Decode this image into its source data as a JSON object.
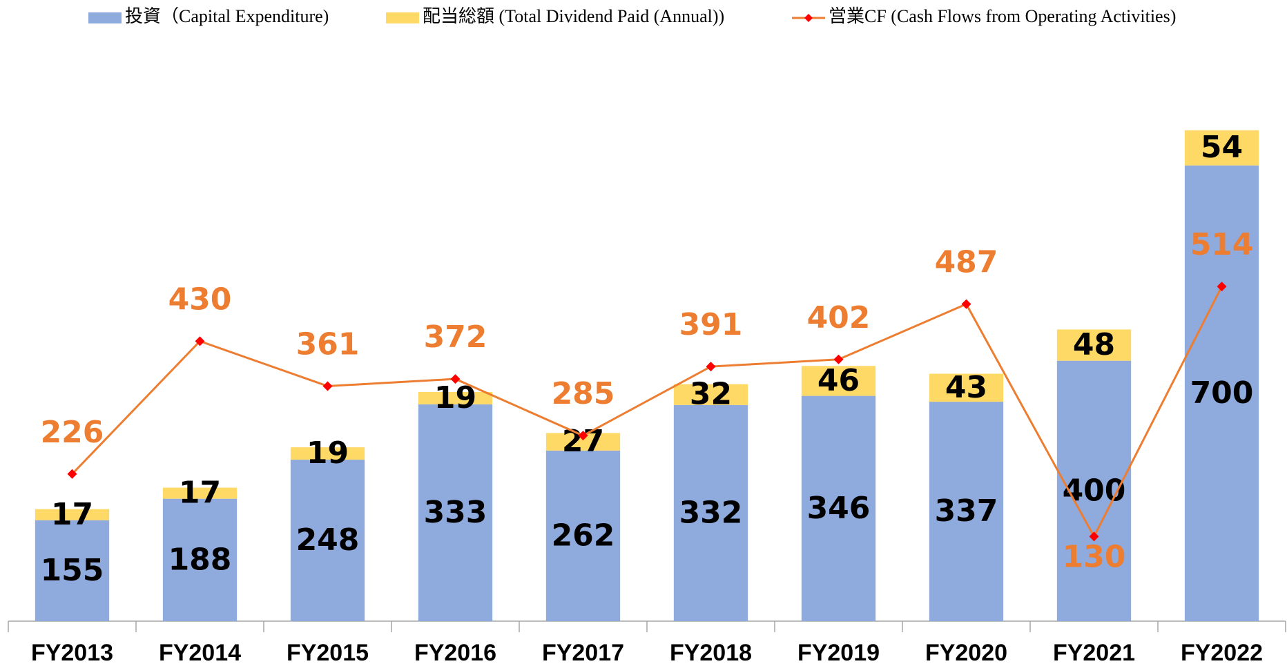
{
  "chart_data": {
    "type": "bar",
    "categories": [
      "FY2013",
      "FY2014",
      "FY2015",
      "FY2016",
      "FY2017",
      "FY2018",
      "FY2019",
      "FY2020",
      "FY2021",
      "FY2022"
    ],
    "ylim": [
      0,
      900
    ],
    "series": [
      {
        "name": "投資（Capital Expenditure)",
        "type": "bar",
        "color": "#8faadc",
        "values": [
          155,
          188,
          248,
          333,
          262,
          332,
          346,
          337,
          400,
          700
        ]
      },
      {
        "name": "配当総額 (Total Dividend Paid (Annual))",
        "type": "bar",
        "color": "#ffd966",
        "values": [
          17,
          17,
          19,
          19,
          27,
          32,
          46,
          43,
          48,
          54
        ]
      },
      {
        "name": "営業CF (Cash Flows from Operating Activities)",
        "type": "line",
        "color": "#ed7d31",
        "marker_color": "#ff0000",
        "values": [
          226,
          430,
          361,
          372,
          285,
          391,
          402,
          487,
          130,
          514
        ]
      }
    ]
  }
}
